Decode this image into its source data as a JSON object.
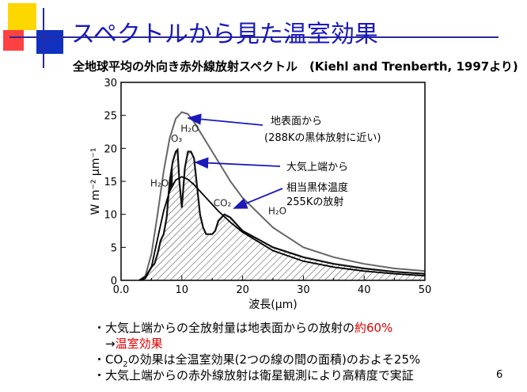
{
  "slide": {
    "title": "スペクトルから見た温室効果",
    "subtitle": "全地球平均の外向き赤外線放射スペクトル　(Kiehl and Trenberth, 1997より)",
    "page_number": "6"
  },
  "annotations": {
    "surface_line1": "地表面から",
    "surface_line2": "(288Kの黒体放射に近い)",
    "toa": "大気上端から",
    "bb_line1": "相当黒体温度",
    "bb_line2": "255Kの放射"
  },
  "chart_data": {
    "type": "line",
    "xlabel": "波長(μm)",
    "ylabel": "W m⁻² μm⁻¹",
    "xlim": [
      0,
      50
    ],
    "ylim": [
      0,
      30
    ],
    "x_ticks": [
      "0.0",
      "10",
      "20",
      "30",
      "40",
      "50"
    ],
    "y_ticks": [
      "0",
      "5",
      "10",
      "15",
      "20",
      "25",
      "30"
    ],
    "series": [
      {
        "name": "地表面から",
        "x": [
          3,
          4,
          5,
          6,
          7,
          8,
          9,
          10,
          11,
          12,
          14,
          16,
          18,
          20,
          25,
          30,
          35,
          40,
          45,
          50
        ],
        "values": [
          0,
          0.7,
          4,
          10,
          16.5,
          21.5,
          24.5,
          25.5,
          25.2,
          24,
          21,
          18,
          15,
          12.5,
          8,
          5,
          3.5,
          2.5,
          1.8,
          1.4
        ]
      },
      {
        "name": "大気上端から",
        "x": [
          3,
          4,
          5,
          5.5,
          6,
          6.5,
          7,
          7.5,
          8,
          8.5,
          9,
          9.3,
          9.6,
          10,
          10.5,
          11,
          11.5,
          12,
          13,
          13.5,
          14,
          15,
          15.5,
          16,
          17,
          18,
          19,
          20,
          22,
          25,
          30,
          35,
          40,
          45,
          50
        ],
        "values": [
          0,
          0.5,
          2,
          2.5,
          4,
          6,
          7,
          9.5,
          15,
          18,
          19.5,
          19.8,
          15,
          11,
          17,
          19.5,
          19.5,
          18.5,
          10,
          8,
          7,
          7,
          7.5,
          9,
          10,
          9.5,
          8.5,
          7.5,
          6.5,
          5,
          3.5,
          2.5,
          1.8,
          1.3,
          1
        ]
      },
      {
        "name": "相当黒体温度255Kの放射",
        "x": [
          3,
          4,
          5,
          6,
          7,
          8,
          9,
          10,
          11,
          12,
          13,
          14,
          16,
          18,
          20,
          25,
          30,
          35,
          40,
          45,
          50
        ],
        "values": [
          0,
          0.3,
          2,
          6.3,
          10.5,
          13.5,
          15.2,
          15.7,
          15.3,
          14.5,
          13.5,
          12.5,
          10.5,
          8.8,
          7.3,
          4.5,
          2.9,
          2,
          1.4,
          1,
          0.7
        ]
      }
    ],
    "labels": [
      {
        "text": "H₂O",
        "x": 4.8,
        "y": 14.2
      },
      {
        "text": "O₃",
        "x": 8.2,
        "y": 21
      },
      {
        "text": "H₂O",
        "x": 9.8,
        "y": 22.5
      },
      {
        "text": "CO₂",
        "x": 15.2,
        "y": 11.2
      },
      {
        "text": "H₂O",
        "x": 24.2,
        "y": 10
      }
    ]
  },
  "notes": [
    {
      "pre": "・大気上端からの全放射量は地表面からの放射の",
      "red": "約60%"
    },
    {
      "pre": "　→",
      "red": "温室効果"
    },
    {
      "pre": "・CO",
      "sub": "2",
      "post": "の効果は全温室効果(2つの線の間の面積)のおよそ25%"
    },
    {
      "pre": "・大気上端からの赤外線放射は衛星観測により高精度で実証"
    }
  ]
}
